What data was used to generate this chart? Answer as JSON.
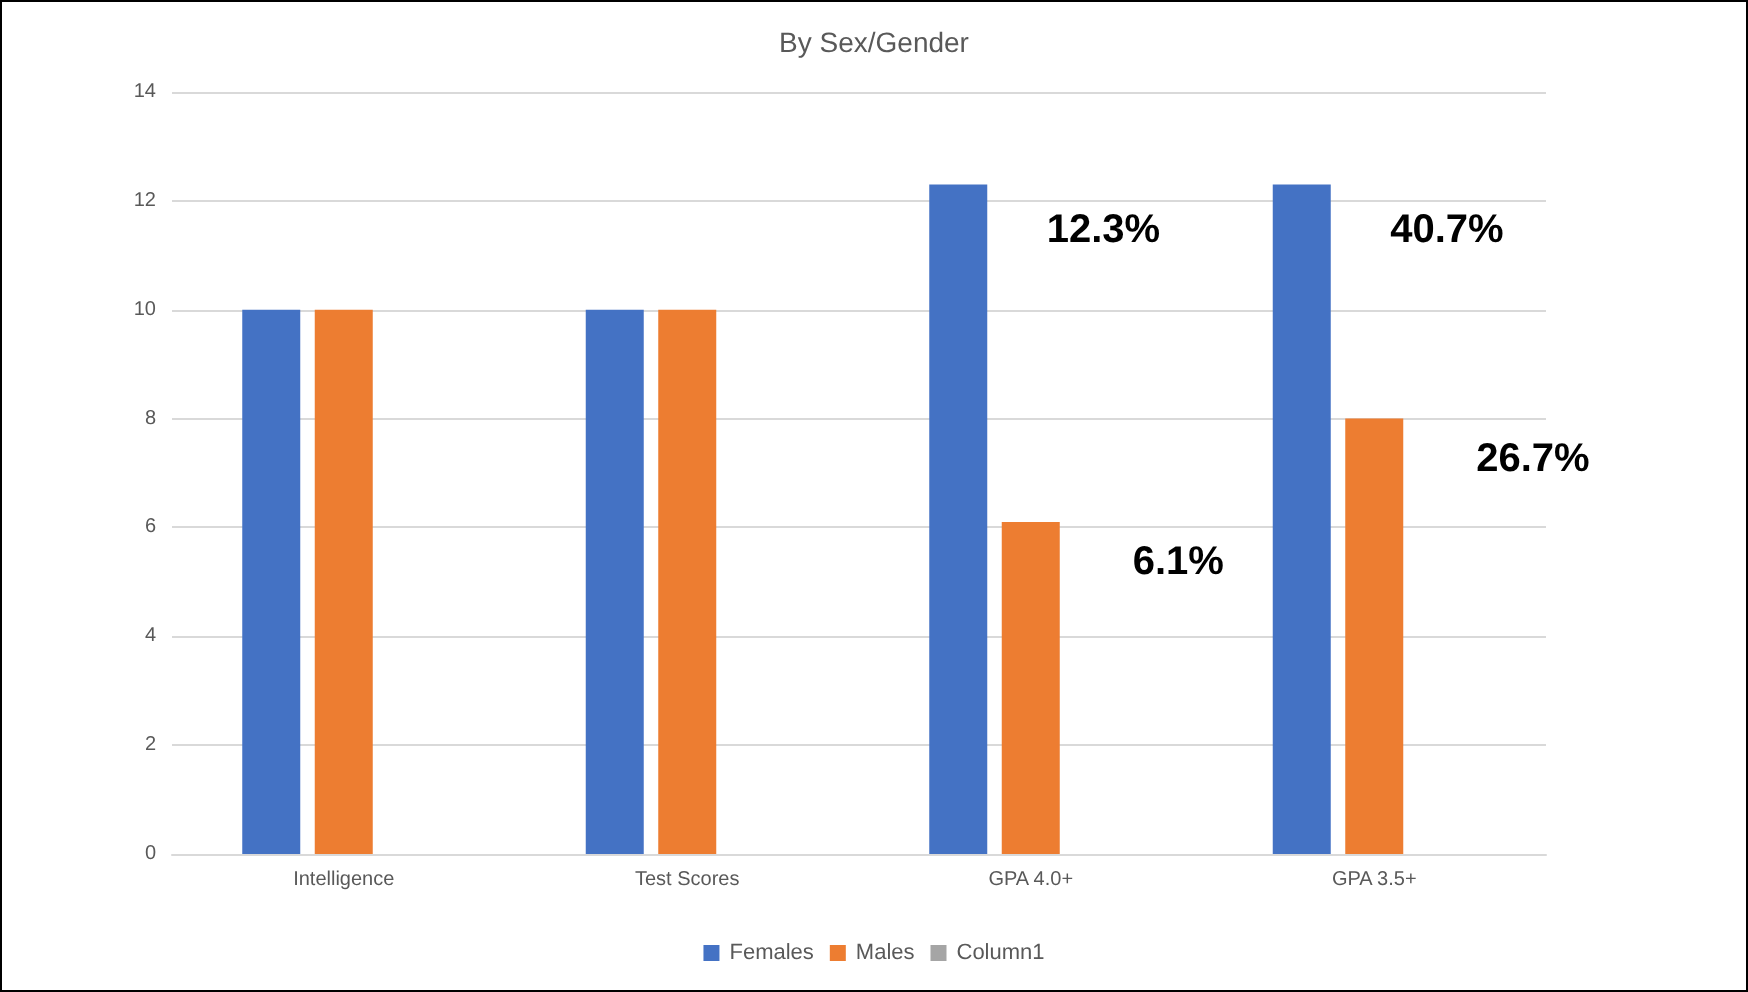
{
  "chart_data": {
    "type": "bar",
    "title": "By Sex/Gender",
    "categories": [
      "Intelligence",
      "Test Scores",
      "GPA 4.0+",
      "GPA 3.5+"
    ],
    "series": [
      {
        "name": "Females",
        "color": "#4472c4",
        "values": [
          10,
          10,
          12.3,
          12.3
        ]
      },
      {
        "name": "Males",
        "color": "#ed7d31",
        "values": [
          10,
          10,
          6.1,
          8
        ]
      },
      {
        "name": "Column1",
        "color": "#a5a5a5",
        "values": [
          null,
          null,
          null,
          null
        ]
      }
    ],
    "ylim": [
      0,
      14
    ],
    "yticks": [
      0,
      2,
      4,
      6,
      8,
      10,
      12,
      14
    ],
    "grid": "y",
    "legend": "bottom",
    "annotations": [
      "12.3%",
      {
        "text": "6.1%",
        "x": "GPA 4.0+",
        "y": 6.1
      },
      "40.7%",
      {
        "text": "26.7%",
        "x": "GPA 3.5+",
        "y": 8
      }
    ]
  }
}
